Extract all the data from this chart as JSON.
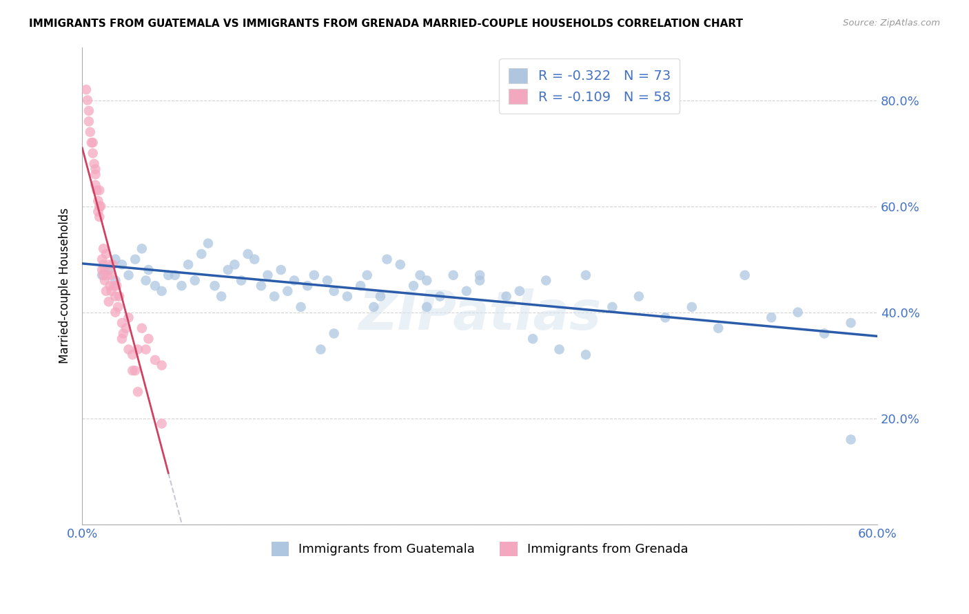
{
  "title": "IMMIGRANTS FROM GUATEMALA VS IMMIGRANTS FROM GRENADA MARRIED-COUPLE HOUSEHOLDS CORRELATION CHART",
  "source": "Source: ZipAtlas.com",
  "ylabel": "Married-couple Households",
  "xlim": [
    0.0,
    0.6
  ],
  "ylim": [
    0.0,
    0.9
  ],
  "xticks": [
    0.0,
    0.1,
    0.2,
    0.3,
    0.4,
    0.5,
    0.6
  ],
  "xticklabels": [
    "0.0%",
    "",
    "",
    "",
    "",
    "",
    "60.0%"
  ],
  "yticks": [
    0.0,
    0.2,
    0.4,
    0.6,
    0.8
  ],
  "yticklabels": [
    "",
    "20.0%",
    "40.0%",
    "60.0%",
    "80.0%"
  ],
  "guatemala_color": "#aec6e0",
  "grenada_color": "#f4a8c0",
  "guatemala_line_color": "#2a5caa",
  "grenada_solid_color": "#d04060",
  "grenada_dash_color": "#c8c8d8",
  "legend_label_1": "R = -0.322   N = 73",
  "legend_label_2": "R = -0.109   N = 58",
  "watermark": "ZIPatlas",
  "guatemala_x": [
    0.015,
    0.02,
    0.025,
    0.025,
    0.03,
    0.035,
    0.04,
    0.045,
    0.048,
    0.05,
    0.055,
    0.06,
    0.065,
    0.07,
    0.075,
    0.08,
    0.085,
    0.09,
    0.095,
    0.1,
    0.105,
    0.11,
    0.115,
    0.12,
    0.125,
    0.13,
    0.135,
    0.14,
    0.145,
    0.15,
    0.155,
    0.16,
    0.165,
    0.17,
    0.175,
    0.18,
    0.185,
    0.19,
    0.2,
    0.21,
    0.215,
    0.22,
    0.225,
    0.23,
    0.24,
    0.25,
    0.255,
    0.26,
    0.27,
    0.28,
    0.29,
    0.3,
    0.32,
    0.34,
    0.36,
    0.38,
    0.4,
    0.42,
    0.44,
    0.46,
    0.48,
    0.5,
    0.52,
    0.54,
    0.56,
    0.58,
    0.3,
    0.33,
    0.35,
    0.38,
    0.26,
    0.19,
    0.58
  ],
  "guatemala_y": [
    0.47,
    0.48,
    0.5,
    0.46,
    0.49,
    0.47,
    0.5,
    0.52,
    0.46,
    0.48,
    0.45,
    0.44,
    0.47,
    0.47,
    0.45,
    0.49,
    0.46,
    0.51,
    0.53,
    0.45,
    0.43,
    0.48,
    0.49,
    0.46,
    0.51,
    0.5,
    0.45,
    0.47,
    0.43,
    0.48,
    0.44,
    0.46,
    0.41,
    0.45,
    0.47,
    0.33,
    0.46,
    0.36,
    0.43,
    0.45,
    0.47,
    0.41,
    0.43,
    0.5,
    0.49,
    0.45,
    0.47,
    0.41,
    0.43,
    0.47,
    0.44,
    0.46,
    0.43,
    0.35,
    0.33,
    0.47,
    0.41,
    0.43,
    0.39,
    0.41,
    0.37,
    0.47,
    0.39,
    0.4,
    0.36,
    0.38,
    0.47,
    0.44,
    0.46,
    0.32,
    0.46,
    0.44,
    0.16
  ],
  "grenada_x": [
    0.003,
    0.004,
    0.005,
    0.005,
    0.006,
    0.007,
    0.008,
    0.009,
    0.01,
    0.01,
    0.011,
    0.012,
    0.013,
    0.013,
    0.014,
    0.015,
    0.015,
    0.016,
    0.016,
    0.017,
    0.017,
    0.018,
    0.019,
    0.02,
    0.021,
    0.022,
    0.023,
    0.024,
    0.025,
    0.026,
    0.027,
    0.028,
    0.03,
    0.031,
    0.033,
    0.035,
    0.038,
    0.04,
    0.042,
    0.045,
    0.048,
    0.05,
    0.055,
    0.06,
    0.012,
    0.008,
    0.01,
    0.013,
    0.016,
    0.018,
    0.02,
    0.022,
    0.025,
    0.03,
    0.035,
    0.038,
    0.042,
    0.06
  ],
  "grenada_y": [
    0.82,
    0.8,
    0.78,
    0.76,
    0.74,
    0.72,
    0.7,
    0.68,
    0.66,
    0.64,
    0.63,
    0.61,
    0.6,
    0.63,
    0.6,
    0.5,
    0.48,
    0.49,
    0.52,
    0.48,
    0.46,
    0.51,
    0.47,
    0.49,
    0.45,
    0.47,
    0.49,
    0.45,
    0.43,
    0.45,
    0.41,
    0.43,
    0.38,
    0.36,
    0.37,
    0.39,
    0.32,
    0.29,
    0.33,
    0.37,
    0.33,
    0.35,
    0.31,
    0.3,
    0.59,
    0.72,
    0.67,
    0.58,
    0.47,
    0.44,
    0.42,
    0.44,
    0.4,
    0.35,
    0.33,
    0.29,
    0.25,
    0.19
  ]
}
